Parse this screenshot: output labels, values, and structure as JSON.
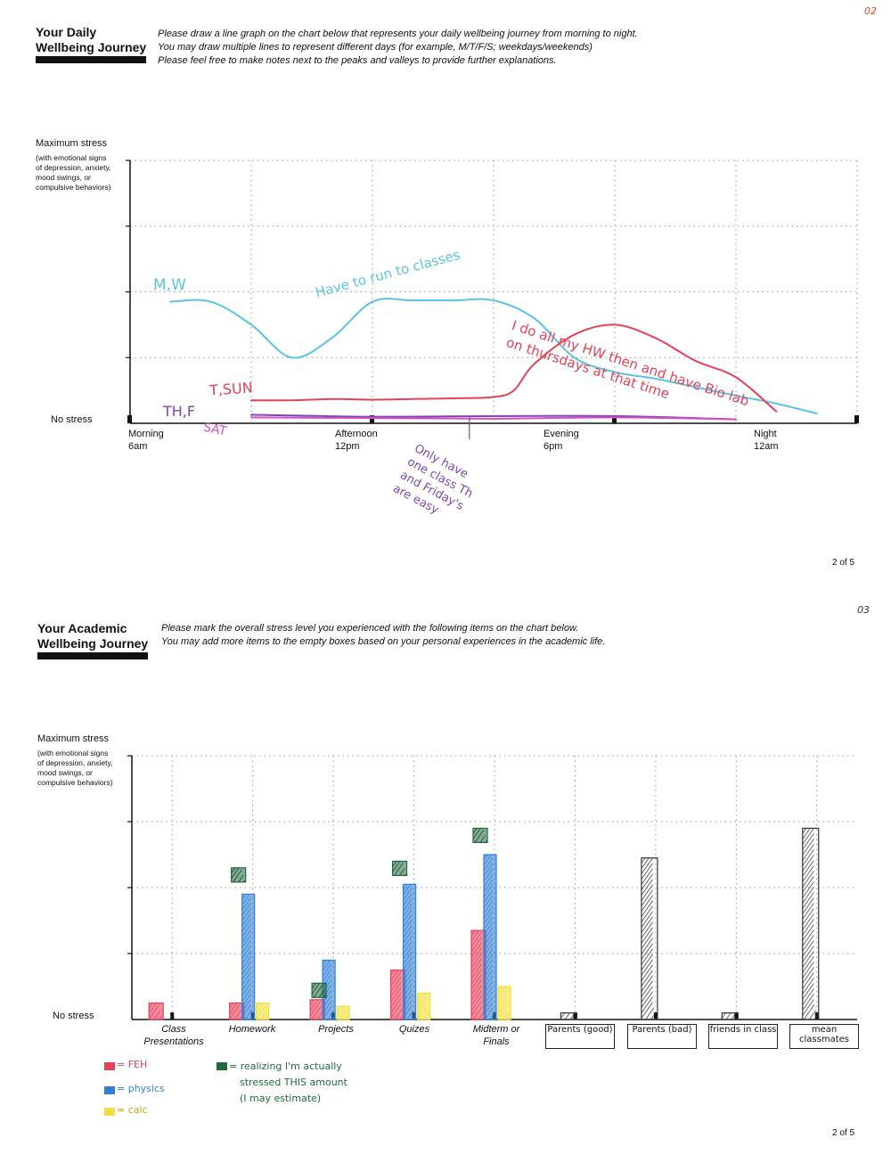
{
  "page1": {
    "corner_mark": "02",
    "title_line1": "Your Daily",
    "title_line2": "Wellbeing Journey",
    "instructions": [
      "Please draw a line graph on the chart below that represents your daily wellbeing journey from morning to night.",
      "You may draw multiple lines to represent different days (for example, M/T/F/S; weekdays/weekends)",
      "Please feel free to make notes next to the peaks and valleys to provide further explanations."
    ],
    "y_max_label": "Maximum stress",
    "y_max_sub": [
      "(with emotional signs",
      "of depression, anxiety,",
      "mood swings, or",
      "compulsive behaviors)"
    ],
    "y_min_label": "No stress",
    "page_number": "2 of 5"
  },
  "page2": {
    "corner_mark": "03",
    "title_line1": "Your Academic",
    "title_line2": "Wellbeing Journey",
    "instructions": [
      "Please mark the overall stress level you experienced with the following items on the chart below.",
      "You may add more items to the empty boxes based on your personal experiences in the academic life."
    ],
    "y_max_label": "Maximum stress",
    "y_max_sub": [
      "(with emotional signs",
      "of depression, anxiety,",
      "mood swings, or",
      "compulsive behaviors)"
    ],
    "y_min_label": "No stress",
    "page_number": "2 of 5",
    "legend": {
      "feh": "= FEH",
      "physics": "= physics",
      "calc": "= calc",
      "realizing": [
        "= realizing I'm actually",
        "stressed THIS amount",
        "(I may estimate)"
      ]
    },
    "colors": {
      "feh": "#e8405a",
      "physics": "#2f7fd6",
      "calc": "#f2df3a",
      "realizing": "#1f6b3c",
      "pen": "#333333"
    }
  },
  "chart_data": [
    {
      "type": "line",
      "title": "Your Daily Wellbeing Journey",
      "ylabel": "Maximum stress",
      "ylim": [
        0,
        4
      ],
      "grid": true,
      "x_ticks": [
        {
          "label": "Morning",
          "sub": "6am"
        },
        {
          "label": "Afternoon",
          "sub": "12pm"
        },
        {
          "label": "Evening",
          "sub": "6pm"
        },
        {
          "label": "Night",
          "sub": "12am"
        }
      ],
      "x_range": [
        6,
        24
      ],
      "series": [
        {
          "name": "M,W",
          "color": "#5cc3e6",
          "x": [
            7,
            8,
            9,
            10,
            11,
            12,
            13,
            14,
            15,
            16,
            17,
            18,
            19,
            20,
            21,
            22,
            23
          ],
          "y": [
            1.85,
            1.85,
            1.5,
            1.0,
            1.3,
            1.85,
            1.87,
            1.87,
            1.87,
            1.6,
            1.0,
            0.78,
            0.68,
            0.55,
            0.42,
            0.3,
            0.15
          ]
        },
        {
          "name": "T,SUN",
          "color": "#e64257",
          "x": [
            9,
            10,
            11,
            12,
            13,
            14,
            15,
            15.5,
            16,
            17,
            18,
            19,
            20,
            21,
            22
          ],
          "y": [
            0.35,
            0.35,
            0.37,
            0.36,
            0.37,
            0.38,
            0.4,
            0.5,
            0.9,
            1.35,
            1.5,
            1.3,
            0.95,
            0.7,
            0.18
          ]
        },
        {
          "name": "TH,F",
          "color": "#7e45b5",
          "x": [
            9,
            12,
            15,
            18,
            21
          ],
          "y": [
            0.13,
            0.1,
            0.11,
            0.11,
            0.06
          ]
        },
        {
          "name": "SAT",
          "color": "#d64fc4",
          "x": [
            9,
            12,
            15,
            18,
            21
          ],
          "y": [
            0.09,
            0.08,
            0.07,
            0.09,
            0.06
          ]
        }
      ],
      "annotations": [
        {
          "text": "Have to run to classes",
          "color": "#5cc3e6"
        },
        {
          "text": "I do all my HW then and have Bio lab on thursdays at that time",
          "color": "#e64257"
        },
        {
          "text": "Only have one class Th and Friday's are easy",
          "color": "#7e45b5"
        }
      ]
    },
    {
      "type": "bar",
      "title": "Your Academic Wellbeing Journey",
      "ylabel": "Maximum stress",
      "ylim": [
        0,
        4
      ],
      "grid": true,
      "categories": [
        "Class Presentations",
        "Homework",
        "Projects",
        "Quizes",
        "Midterm or Finals",
        "Parents (good)",
        "Parents (bad)",
        "friends in class",
        "mean classmates"
      ],
      "series": [
        {
          "name": "FEH",
          "color": "#e8405a",
          "values": [
            0.25,
            0.25,
            0.3,
            0.75,
            1.35,
            null,
            null,
            null,
            null
          ]
        },
        {
          "name": "physics",
          "color": "#2f7fd6",
          "values": [
            null,
            1.9,
            0.9,
            2.05,
            2.5,
            null,
            null,
            null,
            null
          ]
        },
        {
          "name": "calc",
          "color": "#f2df3a",
          "values": [
            null,
            0.25,
            0.2,
            0.4,
            0.5,
            null,
            null,
            null,
            null
          ]
        },
        {
          "name": "realizing",
          "color": "#1f6b3c",
          "values": [
            null,
            2.3,
            0.55,
            2.4,
            2.9,
            null,
            null,
            null,
            null
          ]
        },
        {
          "name": "",
          "color": "#333333",
          "values": [
            null,
            null,
            null,
            null,
            null,
            0.1,
            2.45,
            0.1,
            2.9
          ]
        }
      ]
    }
  ]
}
